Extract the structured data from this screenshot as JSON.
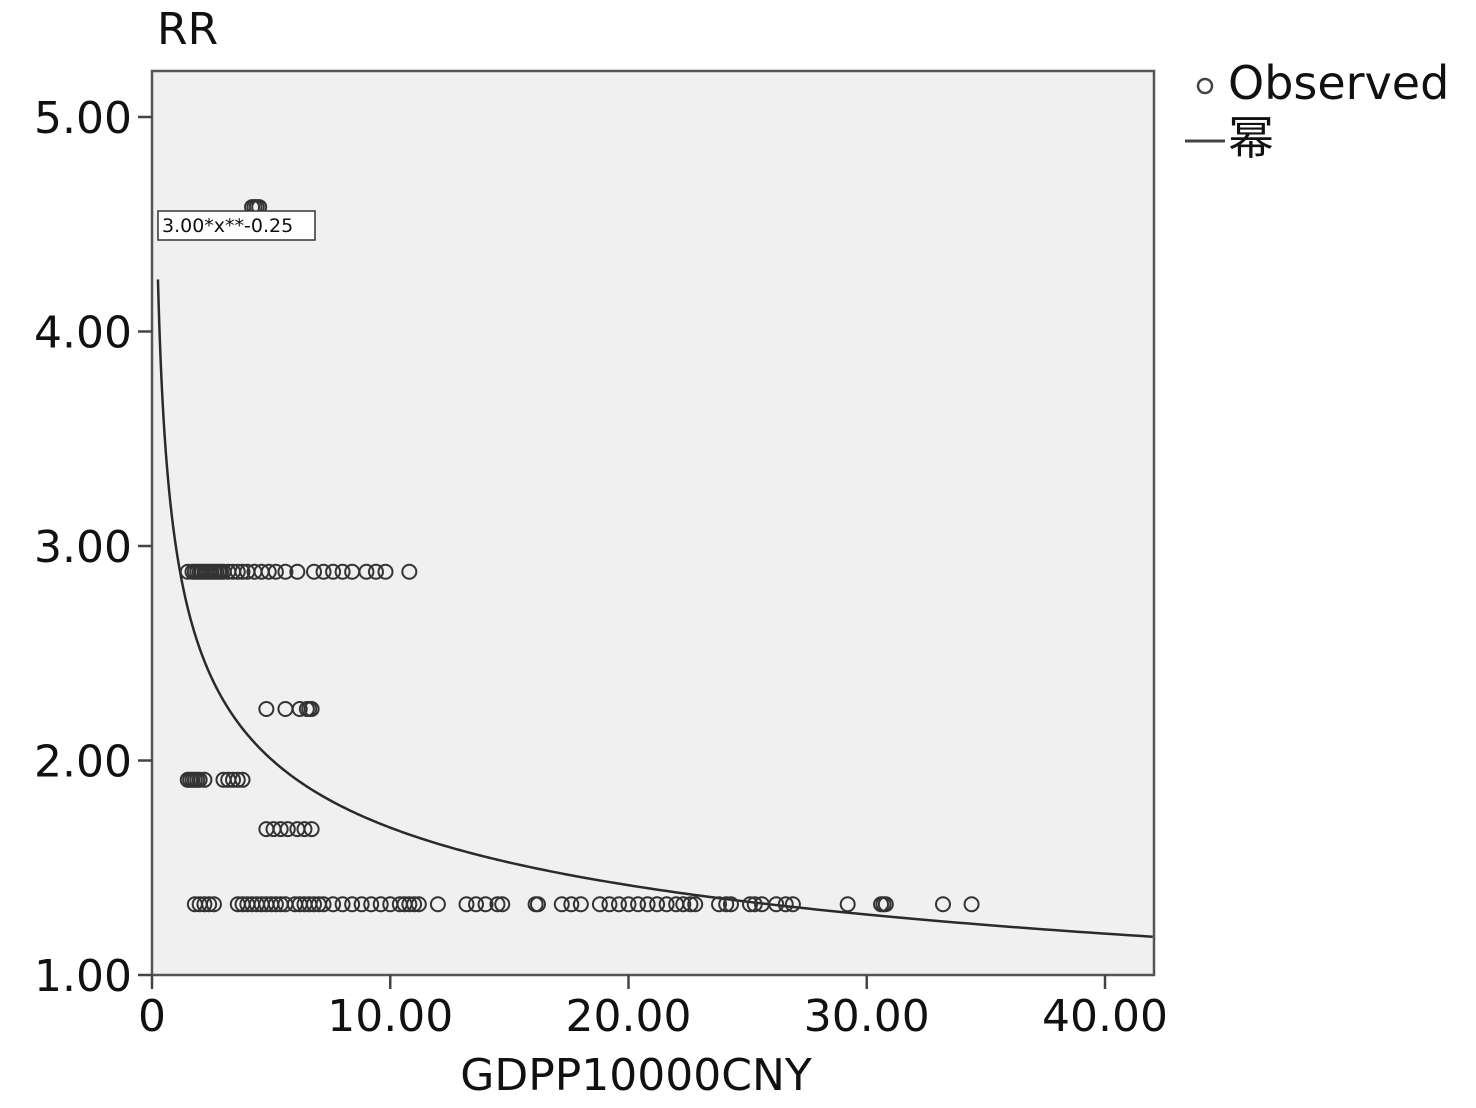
{
  "chart_data": {
    "type": "scatter",
    "xlabel": "GDPP10000CNY",
    "ylabel": "RR",
    "xlim": [
      0,
      42
    ],
    "ylim": [
      1,
      5.2
    ],
    "x_ticks": [
      0,
      10,
      20,
      30,
      40
    ],
    "x_tick_labels": [
      "0",
      "10.00",
      "20.00",
      "30.00",
      "40.00"
    ],
    "y_ticks": [
      1,
      2,
      3,
      4,
      5
    ],
    "y_tick_labels": [
      "1.00",
      "2.00",
      "3.00",
      "4.00",
      "5.00"
    ],
    "grid": false,
    "legend_position": "outside-top-right",
    "legend": {
      "observed_label": "Observed",
      "fit_label": "幂"
    },
    "fit": {
      "equation_label": "3.00*x**-0.25",
      "a": 3.0,
      "b": -0.25,
      "x_range": [
        0.25,
        42
      ]
    },
    "series": [
      {
        "name": "Observed",
        "groups": [
          {
            "y": 4.58,
            "x": [
              4.2,
              4.3,
              4.4,
              4.5
            ]
          },
          {
            "y": 2.88,
            "x": [
              1.5,
              1.7,
              1.8,
              1.9,
              2.0,
              2.1,
              2.2,
              2.3,
              2.4,
              2.5,
              2.6,
              2.7,
              2.8,
              2.9,
              3.0,
              3.2,
              3.4,
              3.6,
              3.8,
              4.0,
              4.3,
              4.6,
              4.9,
              5.2,
              5.6,
              6.1,
              6.8,
              7.2,
              7.6,
              8.0,
              8.4,
              9.0,
              9.4,
              9.8,
              10.8
            ]
          },
          {
            "y": 2.24,
            "x": [
              4.8,
              5.6,
              6.2,
              6.5,
              6.6,
              6.7
            ]
          },
          {
            "y": 1.91,
            "x": [
              1.5,
              1.6,
              1.7,
              1.8,
              1.9,
              2.0,
              2.2,
              3.0,
              3.2,
              3.4,
              3.6,
              3.8
            ]
          },
          {
            "y": 1.68,
            "x": [
              4.8,
              5.1,
              5.4,
              5.7,
              6.1,
              6.4,
              6.7
            ]
          },
          {
            "y": 1.33,
            "x": [
              1.8,
              2.0,
              2.2,
              2.4,
              2.6,
              3.6,
              3.8,
              4.0,
              4.2,
              4.4,
              4.6,
              4.8,
              5.0,
              5.2,
              5.4,
              5.6,
              6.0,
              6.2,
              6.4,
              6.6,
              6.8,
              7.0,
              7.2,
              7.6,
              8.0,
              8.4,
              8.8,
              9.2,
              9.6,
              10.0,
              10.4,
              10.6,
              10.8,
              11.0,
              11.2,
              12.0,
              13.2,
              13.6,
              14.0,
              14.5,
              14.7,
              16.1,
              16.2,
              17.2,
              17.6,
              18.0,
              18.8,
              19.2,
              19.6,
              20.0,
              20.4,
              20.8,
              21.2,
              21.6,
              22.0,
              22.3,
              22.6,
              22.8,
              23.8,
              24.1,
              24.3,
              25.1,
              25.3,
              25.6,
              26.2,
              26.6,
              26.9,
              29.2,
              30.6,
              30.7,
              30.8,
              33.2,
              34.4
            ]
          }
        ]
      }
    ]
  }
}
